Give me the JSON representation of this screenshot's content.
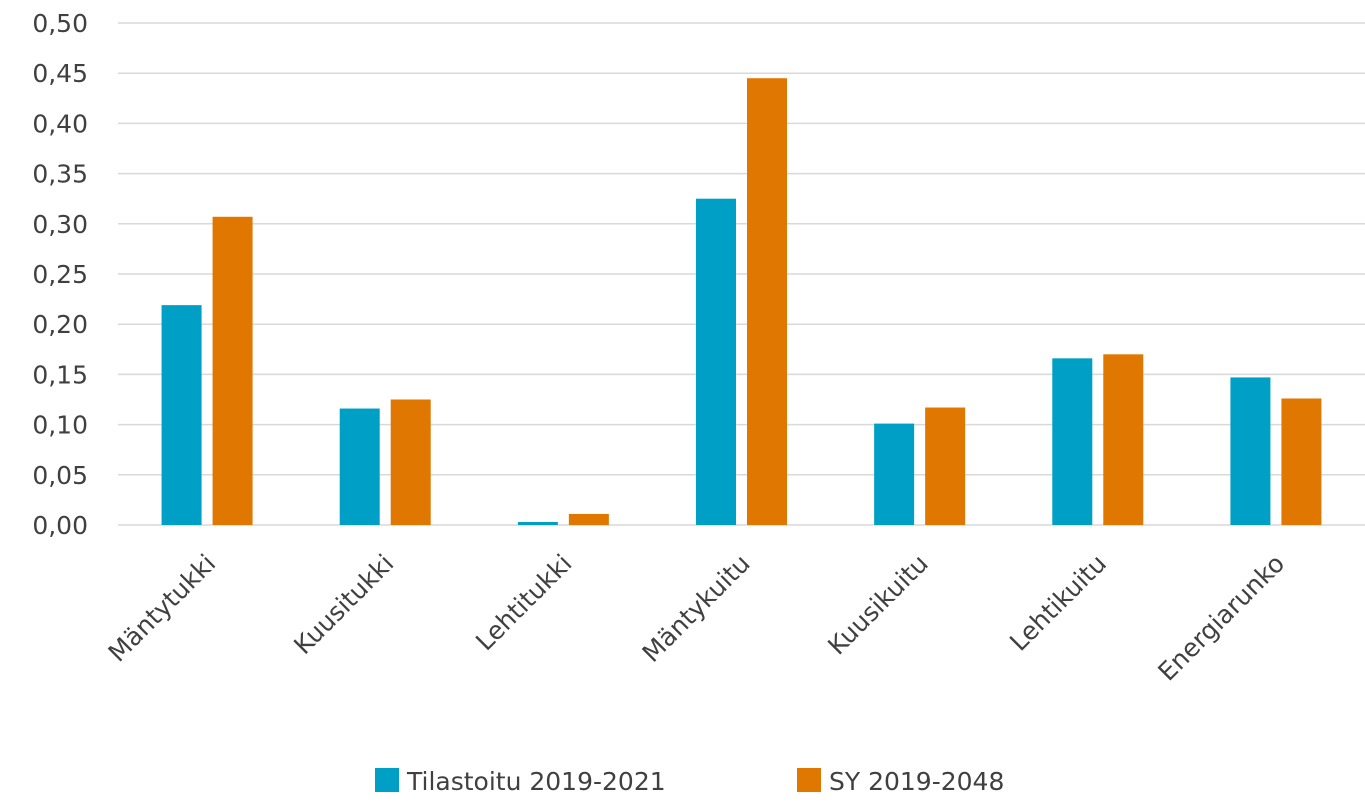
{
  "chart_data": {
    "type": "bar",
    "title": "",
    "xlabel": "",
    "ylabel": "",
    "categories": [
      "Mäntytukki",
      "Kuusitukki",
      "Lehtitukki",
      "Mäntykuitu",
      "Kuusikuitu",
      "Lehtikuitu",
      "Energiarunko"
    ],
    "series": [
      {
        "name": "Tilastoitu 2019-2021",
        "color": "#00A0C6",
        "values": [
          0.219,
          0.116,
          0.003,
          0.325,
          0.101,
          0.166,
          0.147
        ]
      },
      {
        "name": "SY 2019-2048",
        "color": "#E07700",
        "values": [
          0.307,
          0.125,
          0.011,
          0.445,
          0.117,
          0.17,
          0.126
        ]
      }
    ],
    "ylim": [
      0,
      0.5
    ],
    "yticks": [
      "0,00",
      "0,05",
      "0,10",
      "0,15",
      "0,20",
      "0,25",
      "0,30",
      "0,35",
      "0,40",
      "0,45",
      "0,50"
    ],
    "grid": true,
    "legend_position": "bottom"
  }
}
